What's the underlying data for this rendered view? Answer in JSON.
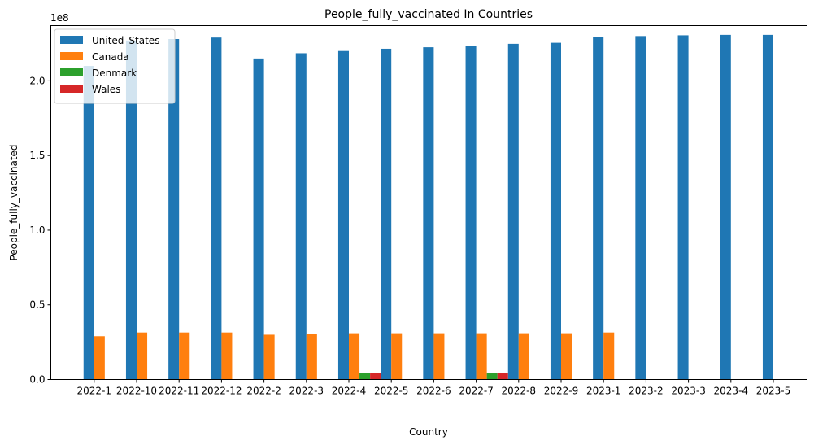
{
  "chart_data": {
    "type": "bar",
    "title": "People_fully_vaccinated In Countries",
    "xlabel": "Country",
    "ylabel": "People_fully_vaccinated",
    "y_multiplier_label": "1e8",
    "y_scale": 100000000,
    "ylim": [
      0,
      237000000
    ],
    "yticks": [
      0,
      50000000,
      100000000,
      150000000,
      200000000
    ],
    "ytick_labels": [
      "0.0",
      "0.5",
      "1.0",
      "1.5",
      "2.0"
    ],
    "categories": [
      "2022-1",
      "2022-10",
      "2022-11",
      "2022-12",
      "2022-2",
      "2022-3",
      "2022-4",
      "2022-5",
      "2022-6",
      "2022-7",
      "2022-8",
      "2022-9",
      "2023-1",
      "2023-2",
      "2023-3",
      "2023-4",
      "2023-5"
    ],
    "legend_position": "top-left",
    "series": [
      {
        "name": "United_States",
        "color": "#1f77b4",
        "values": [
          210000000,
          227000000,
          228000000,
          229000000,
          215000000,
          218500000,
          220000000,
          221500000,
          222500000,
          223500000,
          224800000,
          225500000,
          229500000,
          230000000,
          230500000,
          230800000,
          230800000
        ]
      },
      {
        "name": "Canada",
        "color": "#ff7f0e",
        "values": [
          29000000,
          31500000,
          31500000,
          31500000,
          30000000,
          30500000,
          31000000,
          31000000,
          31000000,
          31000000,
          31000000,
          31000000,
          31500000,
          null,
          null,
          null,
          null
        ]
      },
      {
        "name": "Denmark",
        "color": "#2ca02c",
        "values": [
          null,
          null,
          null,
          null,
          null,
          null,
          4500000,
          null,
          null,
          4500000,
          null,
          null,
          null,
          null,
          null,
          null,
          null
        ]
      },
      {
        "name": "Wales",
        "color": "#d62728",
        "values": [
          null,
          null,
          null,
          null,
          null,
          null,
          4500000,
          null,
          null,
          4500000,
          null,
          null,
          null,
          null,
          null,
          null,
          null
        ]
      }
    ]
  }
}
